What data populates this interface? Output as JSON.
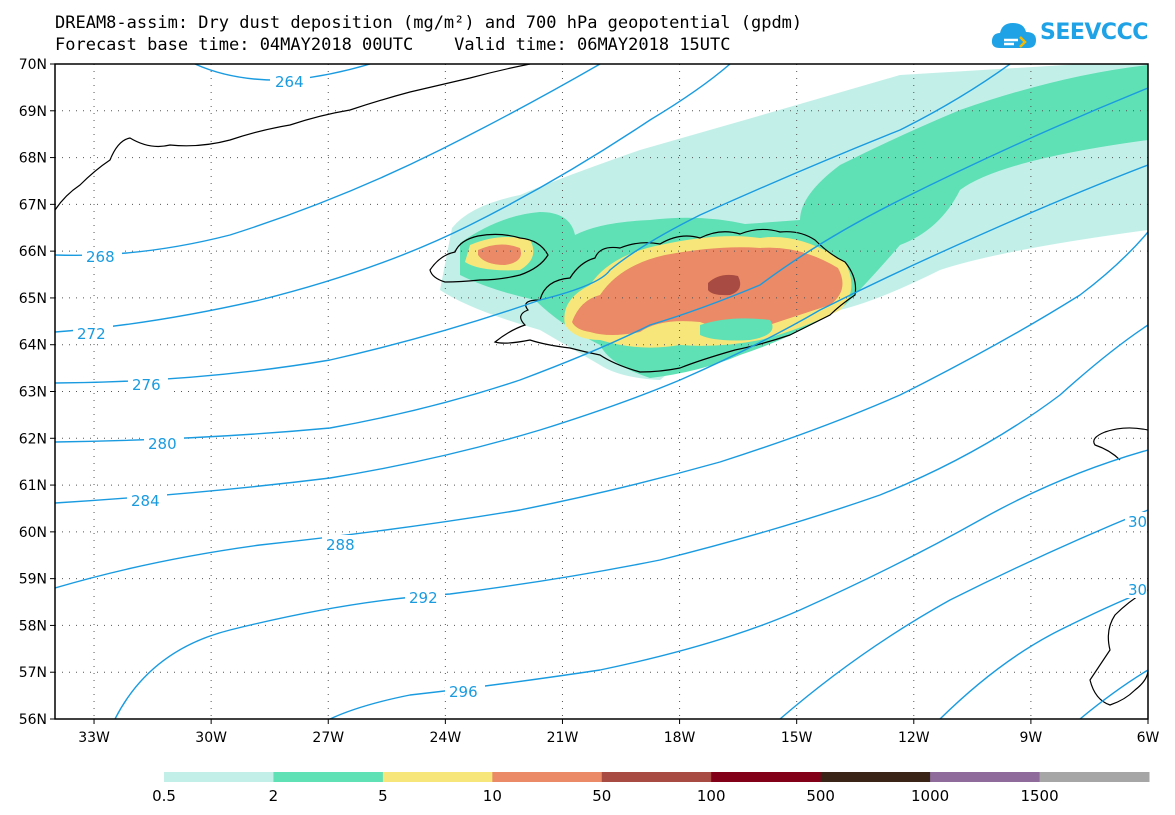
{
  "title": {
    "line1": "DREAM8-assim: Dry dust deposition (mg/m²) and 700 hPa geopotential (gpdm)",
    "line2": "Forecast base time: 04MAY2018 00UTC    Valid time: 06MAY2018 15UTC"
  },
  "logo": {
    "text": "SEEVCCC",
    "icon": "cloud-icon",
    "color": "#1fa3e6"
  },
  "map": {
    "lon_range": [
      -34,
      -6
    ],
    "lat_range": [
      56,
      70
    ],
    "lat_labels": [
      "70N",
      "69N",
      "68N",
      "67N",
      "66N",
      "65N",
      "64N",
      "63N",
      "62N",
      "61N",
      "60N",
      "59N",
      "58N",
      "57N",
      "56N"
    ],
    "lon_labels": [
      "33W",
      "30W",
      "27W",
      "24W",
      "21W",
      "18W",
      "15W",
      "12W",
      "9W",
      "6W"
    ],
    "contour_color": "#1a9be0",
    "contour_labels": [
      "264",
      "268",
      "272",
      "276",
      "280",
      "284",
      "288",
      "292",
      "296",
      "30",
      "30"
    ]
  },
  "colorbar": {
    "colors": [
      "#c2f0e8",
      "#5fe0b5",
      "#f7e77a",
      "#ea8a66",
      "#a84b42",
      "#820018",
      "#3a2417",
      "#8e6b9a",
      "#a6a6a6"
    ],
    "labels": [
      "0.5",
      "2",
      "5",
      "10",
      "50",
      "100",
      "500",
      "1000",
      "1500"
    ]
  }
}
